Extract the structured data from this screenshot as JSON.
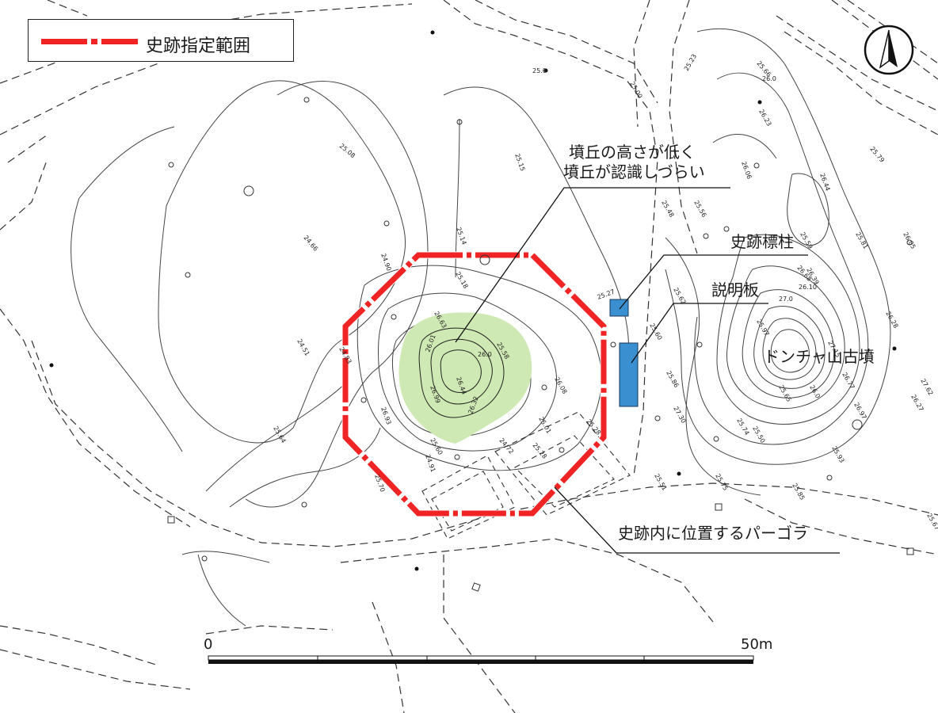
{
  "legend": {
    "label": "史跡指定範囲",
    "line_color": "#f02424"
  },
  "annotations": {
    "mound_note_line1": "墳丘の高さが低く",
    "mound_note_line2": "墳丘が認識しづらい",
    "marker_post": "史跡標柱",
    "info_board": "説明板",
    "tomb_name": "ドンチャ山古墳",
    "pergola": "史跡内に位置するパーゴラ"
  },
  "scale": {
    "start": "0",
    "end": "50m"
  },
  "colors": {
    "mound_fill": "#cfe9b4",
    "sign_fill": "#3a8fd0",
    "boundary": "#f02424"
  },
  "contour_labels": [
    "25.0",
    "25.00",
    "25.23",
    "25.66",
    "26.0",
    "26.23",
    "25.08",
    "25.15",
    "26.06",
    "26.44",
    "25.79",
    "25.48",
    "25.56",
    "24.66",
    "24.90",
    "25.14",
    "25.59",
    "25.81",
    "26.05",
    "26.39",
    "24.51",
    "24.83",
    "25.18",
    "25.62",
    "26.10",
    "26.68",
    "26.28",
    "25.27",
    "27.0",
    "26.63",
    "25.58",
    "26.0",
    "26.01",
    "26.44",
    "25.97",
    "27.15",
    "26.99",
    "26.32",
    "26.08",
    "25.28",
    "25.60",
    "25.86",
    "26.77",
    "26.97",
    "27.30",
    "25.74",
    "26.93",
    "25.01",
    "25.28",
    "25.65",
    "26.0",
    "27.62",
    "26.27",
    "25.64",
    "24.72",
    "25.60",
    "25.50",
    "25.93",
    "25.70",
    "24.91",
    "25.51",
    "25.75",
    "25.85",
    "25.67",
    "25.30"
  ]
}
